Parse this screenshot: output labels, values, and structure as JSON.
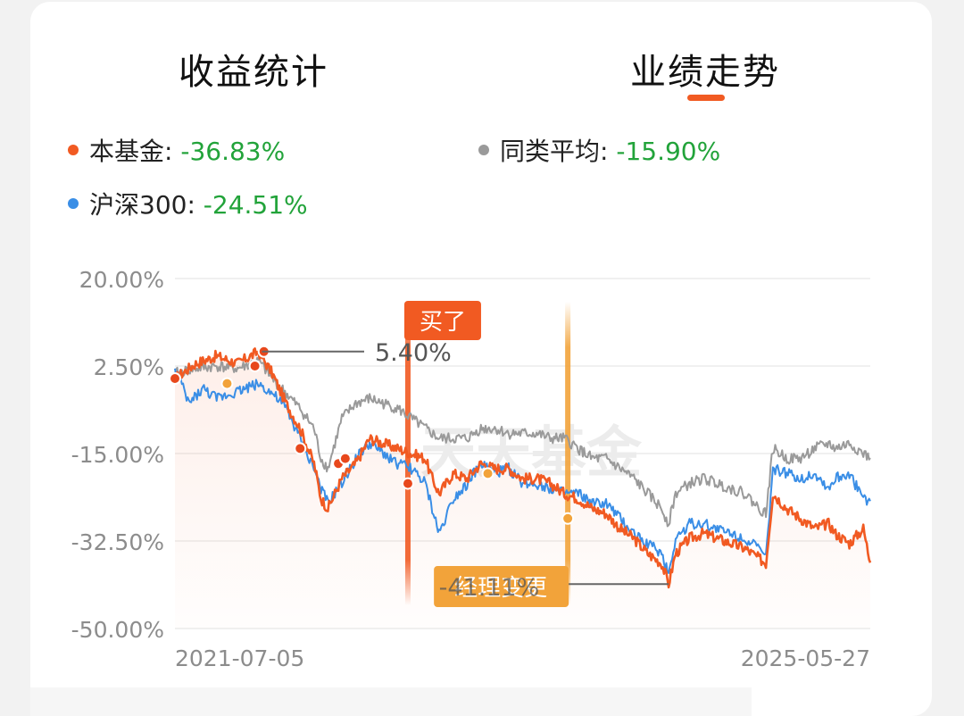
{
  "tabs": [
    {
      "label": "收益统计",
      "active": false
    },
    {
      "label": "业绩走势",
      "active": true
    }
  ],
  "legend": [
    {
      "name": "本基金",
      "value": "-36.83%",
      "color": "#f15a22"
    },
    {
      "name": "同类平均",
      "value": "-15.90%",
      "color": "#9a9a9a"
    },
    {
      "name": "沪深300",
      "value": "-24.51%",
      "color": "#3a8ee6"
    }
  ],
  "watermark": "天天基金",
  "chart_data": {
    "type": "line",
    "x_start": "2021-07-05",
    "x_end": "2025-05-27",
    "x_tick_labels": [
      "2021-07-05",
      "2025-05-27"
    ],
    "ylim": [
      -50,
      20
    ],
    "y_tick_labels": [
      "20.00%",
      "2.50%",
      "-15.00%",
      "-32.50%",
      "-50.00%"
    ],
    "y_ticks": [
      20,
      2.5,
      -15,
      -32.5,
      -50
    ],
    "grid": true,
    "series": [
      {
        "name": "本基金",
        "color": "#f15a22",
        "points": [
          [
            0,
            0
          ],
          [
            3,
            3
          ],
          [
            6,
            4.5
          ],
          [
            9,
            3
          ],
          [
            12,
            5.4
          ],
          [
            14,
            1
          ],
          [
            16,
            -5
          ],
          [
            18,
            -10
          ],
          [
            20,
            -17
          ],
          [
            21,
            -24
          ],
          [
            22,
            -26
          ],
          [
            24,
            -20
          ],
          [
            26,
            -17
          ],
          [
            28,
            -12
          ],
          [
            30,
            -13
          ],
          [
            32,
            -14
          ],
          [
            34,
            -15
          ],
          [
            36,
            -16
          ],
          [
            37,
            -20
          ],
          [
            38,
            -23
          ],
          [
            40,
            -19
          ],
          [
            42,
            -20
          ],
          [
            44,
            -17
          ],
          [
            46,
            -18
          ],
          [
            48,
            -18
          ],
          [
            50,
            -20
          ],
          [
            52,
            -20
          ],
          [
            54,
            -21
          ],
          [
            56,
            -23
          ],
          [
            58,
            -24
          ],
          [
            60,
            -26
          ],
          [
            62,
            -27
          ],
          [
            64,
            -30
          ],
          [
            66,
            -32
          ],
          [
            68,
            -35
          ],
          [
            70,
            -37
          ],
          [
            71,
            -41.1
          ],
          [
            72,
            -35
          ],
          [
            74,
            -32
          ],
          [
            76,
            -31
          ],
          [
            78,
            -32
          ],
          [
            80,
            -33
          ],
          [
            82,
            -34
          ],
          [
            84,
            -36
          ],
          [
            85,
            -37
          ],
          [
            86,
            -23
          ],
          [
            88,
            -26
          ],
          [
            90,
            -28
          ],
          [
            92,
            -30
          ],
          [
            94,
            -29
          ],
          [
            95,
            -31
          ],
          [
            97,
            -33
          ],
          [
            99,
            -30
          ],
          [
            100,
            -36.83
          ]
        ]
      },
      {
        "name": "同类平均",
        "color": "#9a9a9a",
        "points": [
          [
            0,
            1
          ],
          [
            3,
            2
          ],
          [
            6,
            2.5
          ],
          [
            9,
            2
          ],
          [
            12,
            3.5
          ],
          [
            14,
            0
          ],
          [
            16,
            -3
          ],
          [
            18,
            -6
          ],
          [
            20,
            -10
          ],
          [
            21,
            -16
          ],
          [
            22,
            -18
          ],
          [
            24,
            -8
          ],
          [
            26,
            -5
          ],
          [
            28,
            -4
          ],
          [
            30,
            -5
          ],
          [
            32,
            -6
          ],
          [
            34,
            -8
          ],
          [
            36,
            -10
          ],
          [
            37,
            -11
          ],
          [
            38,
            -12
          ],
          [
            40,
            -12
          ],
          [
            42,
            -12
          ],
          [
            44,
            -10
          ],
          [
            46,
            -10
          ],
          [
            48,
            -11
          ],
          [
            50,
            -11
          ],
          [
            52,
            -11
          ],
          [
            54,
            -12
          ],
          [
            56,
            -12
          ],
          [
            58,
            -14
          ],
          [
            60,
            -16
          ],
          [
            62,
            -16
          ],
          [
            64,
            -18
          ],
          [
            66,
            -20
          ],
          [
            68,
            -23
          ],
          [
            70,
            -26
          ],
          [
            71,
            -29
          ],
          [
            72,
            -23
          ],
          [
            74,
            -21
          ],
          [
            76,
            -20
          ],
          [
            78,
            -21
          ],
          [
            80,
            -22
          ],
          [
            82,
            -23
          ],
          [
            84,
            -26
          ],
          [
            85,
            -27
          ],
          [
            86,
            -14
          ],
          [
            88,
            -16
          ],
          [
            90,
            -16
          ],
          [
            92,
            -14
          ],
          [
            94,
            -13
          ],
          [
            95,
            -14
          ],
          [
            97,
            -13
          ],
          [
            99,
            -15
          ],
          [
            100,
            -15.9
          ]
        ]
      },
      {
        "name": "沪深300",
        "color": "#3a8ee6",
        "points": [
          [
            0,
            2
          ],
          [
            2,
            -5
          ],
          [
            4,
            -2
          ],
          [
            6,
            -4
          ],
          [
            8,
            -3
          ],
          [
            10,
            -2
          ],
          [
            12,
            -1
          ],
          [
            14,
            -3
          ],
          [
            16,
            -6
          ],
          [
            18,
            -12
          ],
          [
            20,
            -18
          ],
          [
            21,
            -22
          ],
          [
            22,
            -25
          ],
          [
            24,
            -21
          ],
          [
            26,
            -16
          ],
          [
            28,
            -13
          ],
          [
            30,
            -15
          ],
          [
            32,
            -17
          ],
          [
            34,
            -18
          ],
          [
            36,
            -21
          ],
          [
            37,
            -26
          ],
          [
            38,
            -31
          ],
          [
            40,
            -24
          ],
          [
            42,
            -21
          ],
          [
            44,
            -17
          ],
          [
            46,
            -19
          ],
          [
            48,
            -18
          ],
          [
            50,
            -21
          ],
          [
            52,
            -21
          ],
          [
            54,
            -22
          ],
          [
            56,
            -23
          ],
          [
            58,
            -23
          ],
          [
            60,
            -25
          ],
          [
            62,
            -25
          ],
          [
            64,
            -28
          ],
          [
            66,
            -31
          ],
          [
            68,
            -33
          ],
          [
            70,
            -35
          ],
          [
            71,
            -39
          ],
          [
            72,
            -32
          ],
          [
            74,
            -29
          ],
          [
            76,
            -29
          ],
          [
            78,
            -30
          ],
          [
            80,
            -31
          ],
          [
            82,
            -32
          ],
          [
            84,
            -34
          ],
          [
            85,
            -36
          ],
          [
            86,
            -18
          ],
          [
            88,
            -19
          ],
          [
            90,
            -20
          ],
          [
            92,
            -19
          ],
          [
            94,
            -22
          ],
          [
            95,
            -20
          ],
          [
            97,
            -19
          ],
          [
            99,
            -24
          ],
          [
            100,
            -24.51
          ]
        ]
      }
    ],
    "annotations": [
      {
        "label": "5.40%",
        "value": 5.4,
        "x": 12
      },
      {
        "label": "-41.11%",
        "value": -41.11,
        "x": 71
      },
      {
        "label": "买了",
        "x": 33.5,
        "color": "#f15a22"
      },
      {
        "label": "经理变更",
        "x": 56.5,
        "color": "#f2a33a"
      }
    ],
    "markers": [
      {
        "x": 0,
        "value": 0,
        "color": "#e8481c"
      },
      {
        "x": 7.5,
        "value": -1,
        "color": "#f2a33a"
      },
      {
        "x": 11.5,
        "value": 2.5,
        "color": "#e8481c"
      },
      {
        "x": 12.8,
        "value": 5.4,
        "color": "#e8481c"
      },
      {
        "x": 18,
        "value": -14,
        "color": "#e8481c"
      },
      {
        "x": 23.5,
        "value": -17,
        "color": "#e8481c"
      },
      {
        "x": 24.5,
        "value": -16,
        "color": "#e8481c"
      },
      {
        "x": 33.5,
        "value": -21,
        "color": "#e8481c"
      },
      {
        "x": 45,
        "value": -19,
        "color": "#f2a33a"
      },
      {
        "x": 56.5,
        "value": -28,
        "color": "#f2a33a"
      }
    ]
  }
}
